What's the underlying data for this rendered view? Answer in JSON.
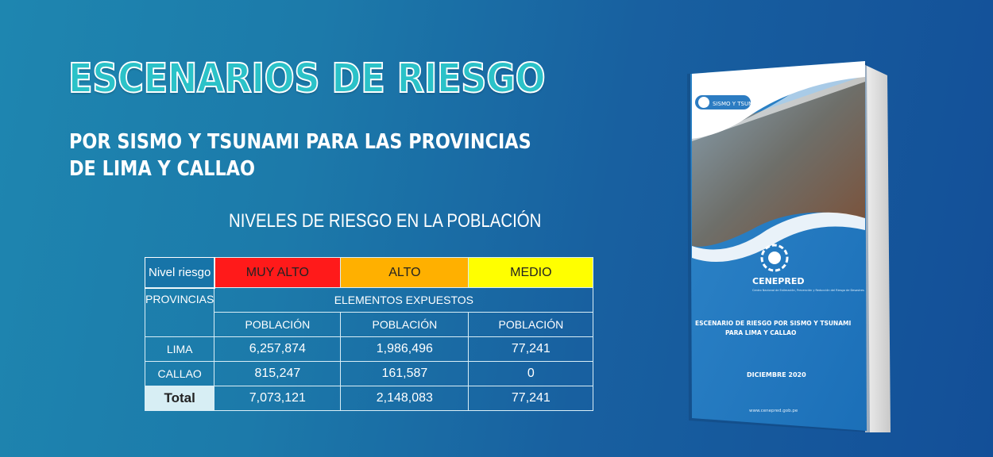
{
  "header": {
    "title": "ESCENARIOS DE RIESGO",
    "subtitle": "POR SISMO Y TSUNAMI PARA LAS PROVINCIAS DE LIMA Y CALLAO"
  },
  "table": {
    "title": "NIVELES DE RIESGO EN LA POBLACIÓN",
    "nivel_label": "Nivel riesgo",
    "levels": [
      "MUY ALTO",
      "ALTO",
      "MEDIO"
    ],
    "provincias_label": "PROVINCIAS",
    "elementos_label": "ELEMENTOS EXPUESTOS",
    "poblacion_label": "POBLACIÓN",
    "rows": [
      {
        "name": "LIMA",
        "values": [
          "6,257,874",
          "1,986,496",
          "77,241"
        ]
      },
      {
        "name": "CALLAO",
        "values": [
          "815,247",
          "161,587",
          "0"
        ]
      },
      {
        "name": "Total",
        "values": [
          "7,073,121",
          "2,148,083",
          "77,241"
        ]
      }
    ],
    "colors": {
      "muy_alto": "#ff1a1a",
      "alto": "#ffb000",
      "medio": "#ffff00"
    }
  },
  "book": {
    "badge": "SISMO Y TSUNAMI",
    "org": "CENEPRED",
    "org_sub": "Centro Nacional de Estimación, Prevención y Reducción del Riesgo de Desastres",
    "cover_title": "ESCENARIO DE RIESGO POR SISMO Y TSUNAMI PARA LIMA Y CALLAO",
    "date": "DICIEMBRE 2020",
    "url": "www.cenepred.gob.pe"
  }
}
